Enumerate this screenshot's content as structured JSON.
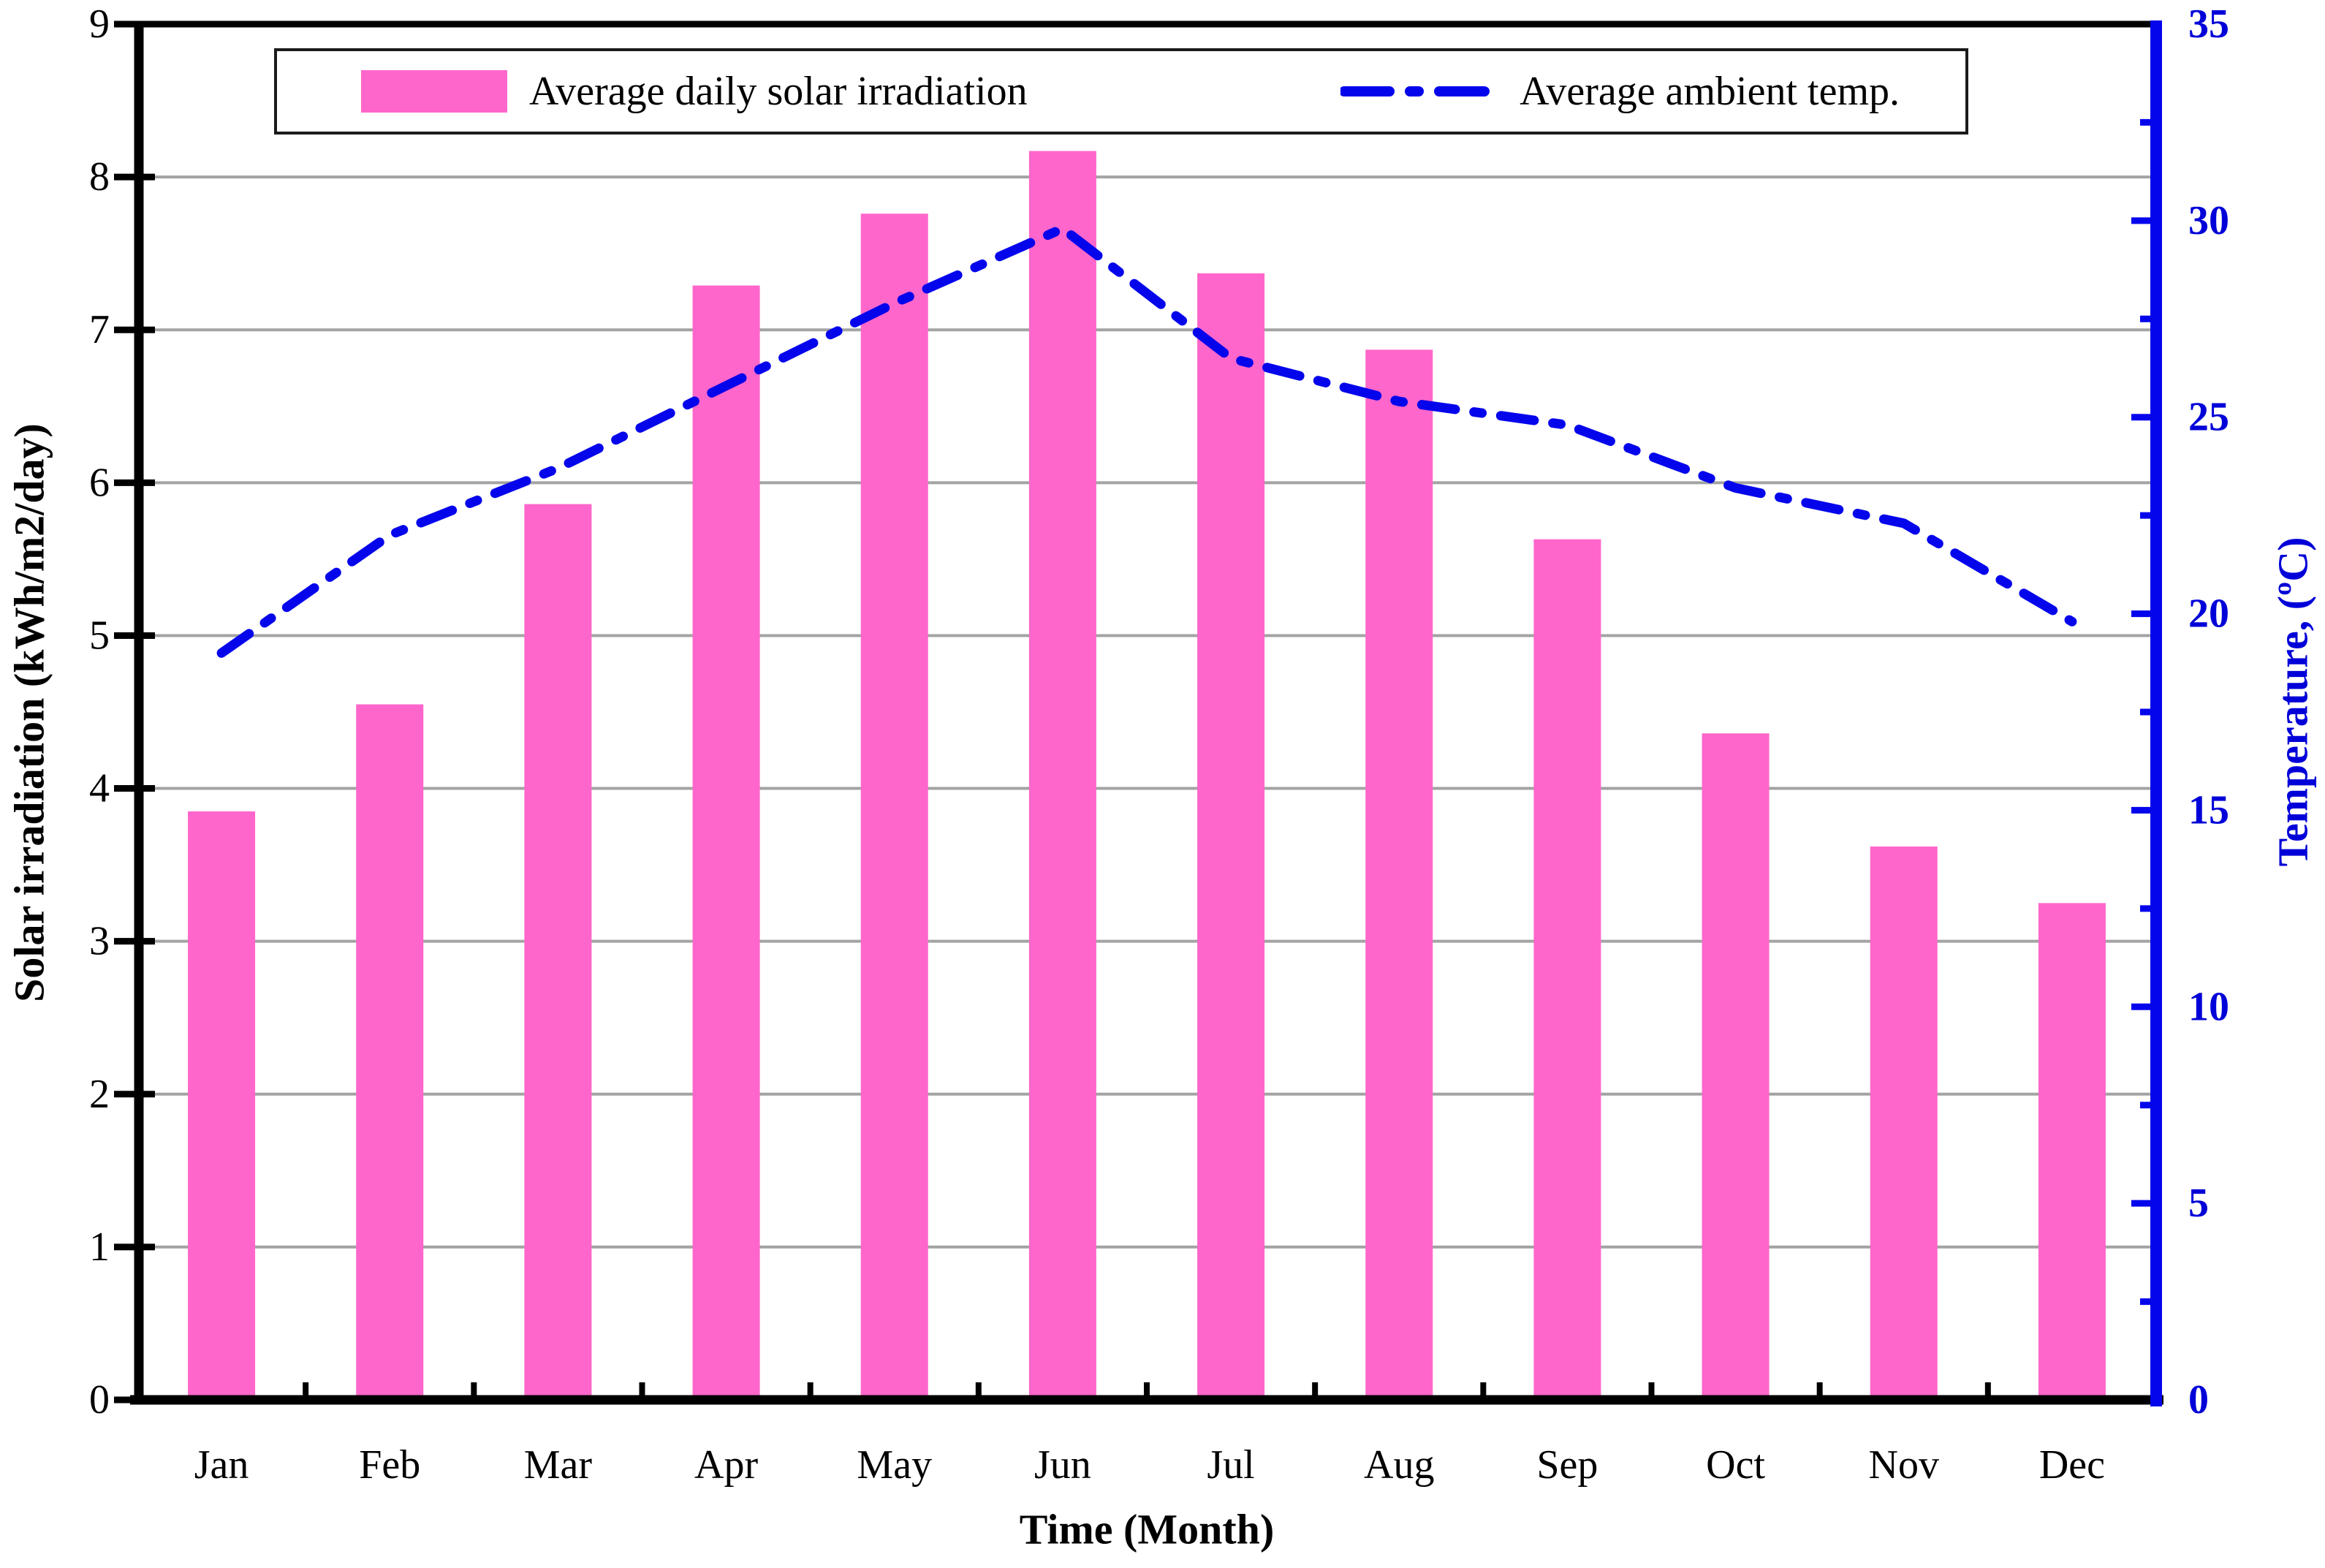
{
  "chart_data": {
    "type": "bar",
    "subtype": "dual-axis bar + dash-dot line",
    "categories": [
      "Jan",
      "Feb",
      "Mar",
      "Apr",
      "May",
      "Jun",
      "Jul",
      "Aug",
      "Sep",
      "Oct",
      "Nov",
      "Dec"
    ],
    "series": [
      {
        "name": "Average daily solar irradiation",
        "type": "bar",
        "axis": "left",
        "values": [
          3.85,
          4.55,
          5.86,
          7.29,
          7.76,
          8.17,
          7.37,
          6.87,
          5.63,
          4.36,
          3.62,
          3.25
        ]
      },
      {
        "name": "Average ambient temp.",
        "type": "line",
        "line_style": "dash-dot",
        "axis": "right",
        "values": [
          19.0,
          22.0,
          23.7,
          25.8,
          27.9,
          29.8,
          26.5,
          25.4,
          24.8,
          23.2,
          22.3,
          19.8
        ]
      }
    ],
    "xlabel": "Time (Month)",
    "ylabel_left": "Solar irradiation (kWh/m2/day)",
    "ylabel_right": "Temperature, (ºC)",
    "ylim_left": [
      0,
      9
    ],
    "ytick_step_left": 1,
    "y_left_tick_labels": [
      "0",
      "1",
      "2",
      "3",
      "4",
      "5",
      "6",
      "7",
      "8",
      "9"
    ],
    "ylim_right": [
      0,
      35
    ],
    "ytick_step_right": 5,
    "yminor_step_right": 2.5,
    "y_right_tick_labels": [
      "0",
      "5",
      "10",
      "15",
      "20",
      "25",
      "30",
      "35"
    ],
    "grid": "horizontal gray lines at each left-axis integer",
    "legend_position": "top, boxed, inside chart width",
    "colors": {
      "bar": "#FF66CB",
      "line": "#0505EC",
      "right_axis": "#0505EC",
      "right_labels": "#0000D8",
      "grid": "#A3A3A3",
      "axis_black": "#000000",
      "background": "#FFFFFF",
      "legend_border": "#1B1B1B"
    }
  },
  "legend": {
    "bar_label": "Average daily solar irradiation",
    "line_label": "Average ambient temp."
  }
}
